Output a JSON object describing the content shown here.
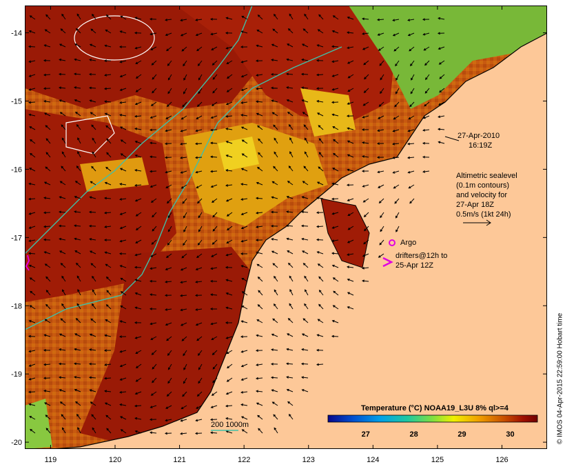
{
  "map": {
    "lon_ticks": [
      "119",
      "120",
      "121",
      "122",
      "123",
      "124",
      "125",
      "126"
    ],
    "lat_ticks": [
      "-14",
      "-15",
      "-16",
      "-17",
      "-18",
      "-19",
      "-20"
    ],
    "lon_range": [
      118.6,
      126.7
    ],
    "lat_range": [
      -20.1,
      -13.6
    ]
  },
  "annotations": {
    "date": "27-Apr-2010",
    "time": "16:19Z",
    "altimetry_line1": "Altimetric sealevel",
    "altimetry_line2": "(0.1m contours)",
    "altimetry_line3": "and velocity for",
    "altimetry_line4": "27-Apr 18Z",
    "altimetry_line5": "0.5m/s (1kt 24h)",
    "argo_label": "Argo",
    "drifters_line1": "drifters@12h to",
    "drifters_line2": "25-Apr 12Z",
    "depth_contours_label": "200  1000m"
  },
  "colorbar": {
    "title": "Temperature (°C) NOAA19_L3U 8% ql>=4",
    "ticks": [
      "27",
      "28",
      "29",
      "30"
    ],
    "colors": [
      "#08088c",
      "#0050d0",
      "#00a0e8",
      "#20c8a0",
      "#80e040",
      "#f0f000",
      "#f0a000",
      "#c85000",
      "#a01000",
      "#700000"
    ]
  },
  "colors": {
    "land": "#fdc898",
    "bathymetry_contour": "#40c0a8",
    "argo_marker": "#e000e0",
    "sealevel_contour": "#ffffff"
  },
  "credit": "© IMOS 04-Apr-2015 22:59:00 Hobart time"
}
